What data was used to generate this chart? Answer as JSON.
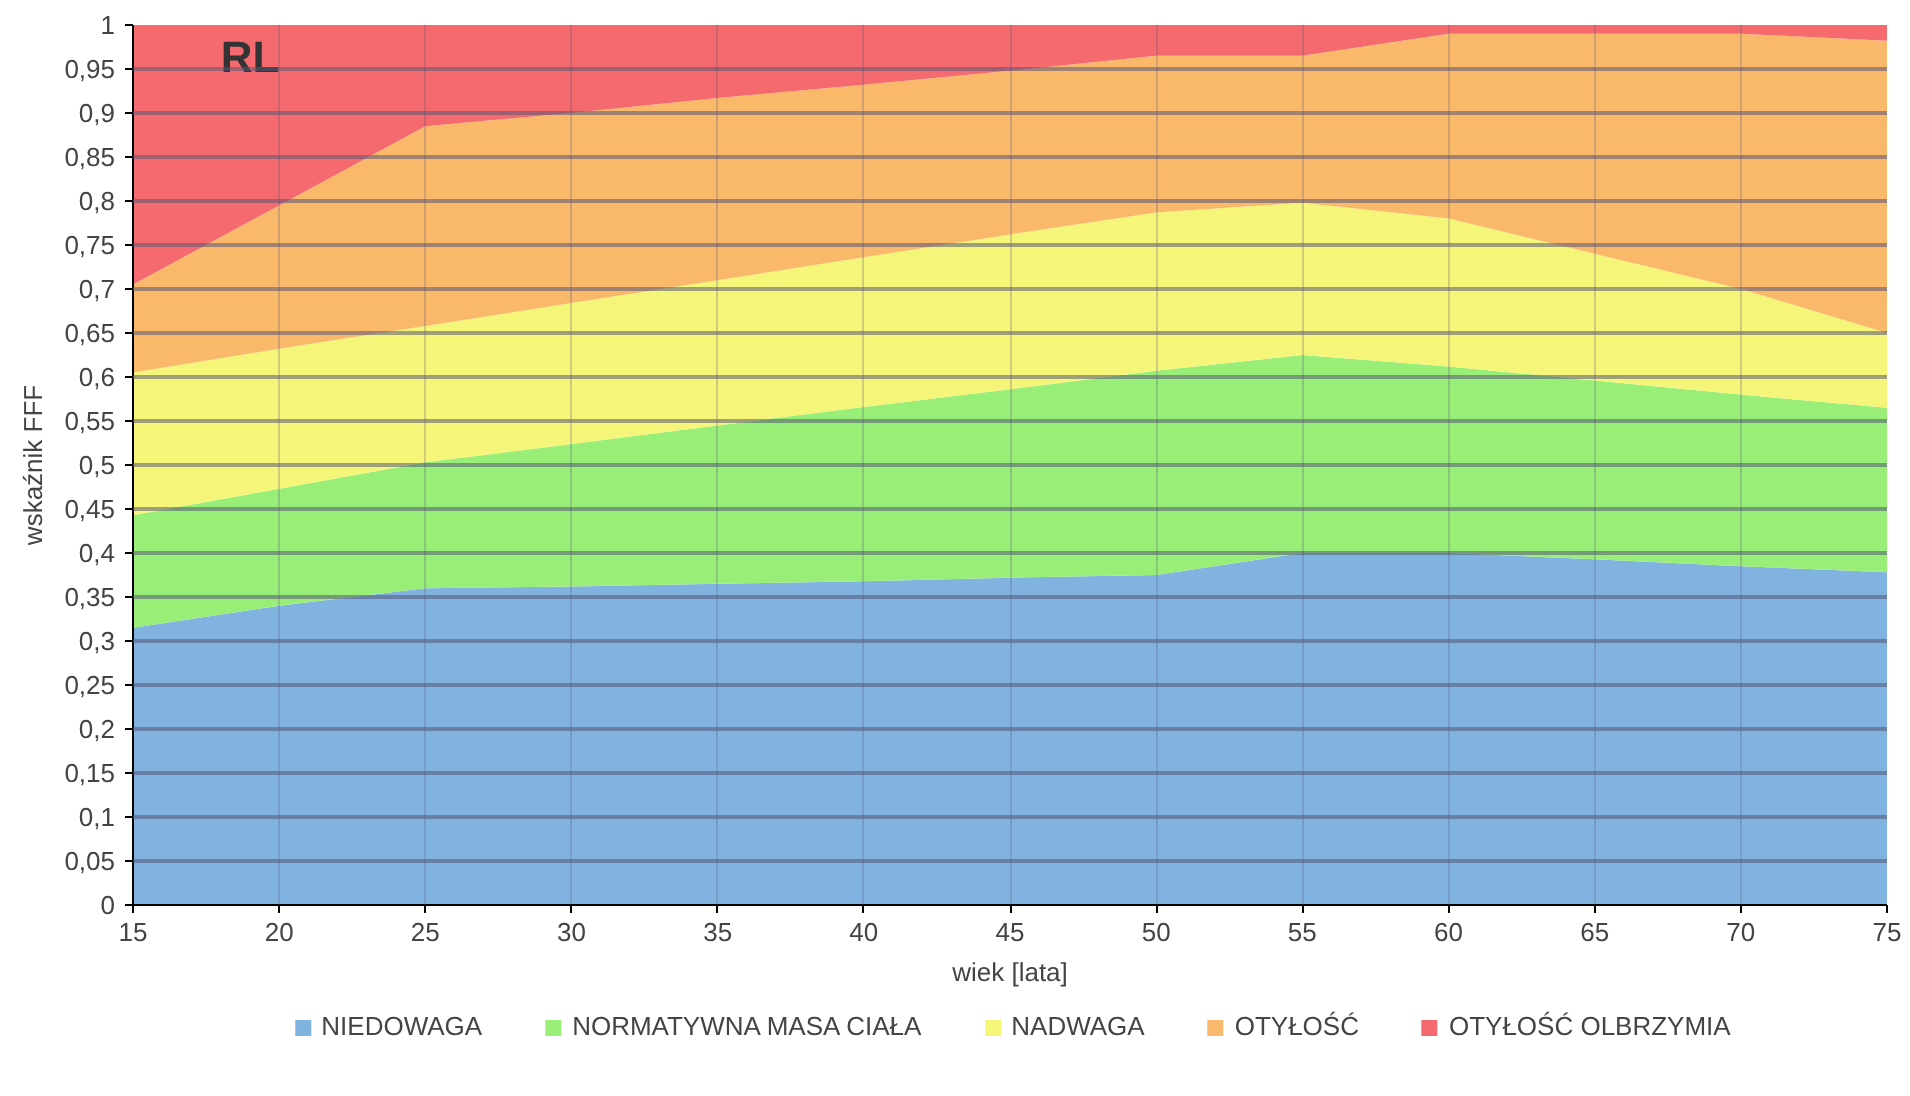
{
  "chart_data": {
    "type": "area",
    "stacked": true,
    "xlabel": "wiek [lata]",
    "ylabel": "wskaźnik FFF",
    "annotations": [
      "RL"
    ],
    "x": [
      15,
      20,
      25,
      30,
      35,
      40,
      45,
      50,
      55,
      60,
      65,
      70,
      75
    ],
    "xlim": [
      15,
      75
    ],
    "xticks": [
      15,
      20,
      25,
      30,
      35,
      40,
      45,
      50,
      55,
      60,
      65,
      70,
      75
    ],
    "ylim": [
      0,
      1
    ],
    "yticks": [
      0,
      {
        "value": 0.05,
        "label": "0,05"
      },
      {
        "value": 0.1,
        "label": "0,1"
      },
      {
        "value": 0.15,
        "label": "0,15"
      },
      {
        "value": 0.2,
        "label": "0,2"
      },
      {
        "value": 0.25,
        "label": "0,25"
      },
      {
        "value": 0.3,
        "label": "0,3"
      },
      {
        "value": 0.35,
        "label": "0,35"
      },
      {
        "value": 0.4,
        "label": "0,4"
      },
      {
        "value": 0.45,
        "label": "0,45"
      },
      {
        "value": 0.5,
        "label": "0,5"
      },
      {
        "value": 0.55,
        "label": "0,55"
      },
      {
        "value": 0.6,
        "label": "0,6"
      },
      {
        "value": 0.65,
        "label": "0,65"
      },
      {
        "value": 0.7,
        "label": "0,7"
      },
      {
        "value": 0.75,
        "label": "0,75"
      },
      {
        "value": 0.8,
        "label": "0,8"
      },
      {
        "value": 0.85,
        "label": "0,85"
      },
      {
        "value": 0.9,
        "label": "0,9"
      },
      {
        "value": 0.95,
        "label": "0,95"
      },
      1
    ],
    "grid": true,
    "legend": "bottom",
    "series": [
      {
        "name": "NIEDOWAGA",
        "color": "#80b3e0",
        "values": [
          0.315,
          0.34,
          0.36,
          0.362,
          0.365,
          0.368,
          0.372,
          0.375,
          0.4,
          0.4,
          0.393,
          0.385,
          0.378
        ]
      },
      {
        "name": "NORMATYWNA MASA CIAŁA",
        "color": "#99ee77",
        "values": [
          0.128,
          0.133,
          0.143,
          0.162,
          0.18,
          0.198,
          0.214,
          0.232,
          0.225,
          0.212,
          0.203,
          0.195,
          0.187
        ]
      },
      {
        "name": "NADWAGA",
        "color": "#f5f57a",
        "values": [
          0.162,
          0.159,
          0.155,
          0.16,
          0.165,
          0.17,
          0.176,
          0.18,
          0.173,
          0.168,
          0.144,
          0.12,
          0.085
        ]
      },
      {
        "name": "OTYŁOŚĆ",
        "color": "#f9b86a",
        "values": [
          0.1,
          0.163,
          0.227,
          0.216,
          0.207,
          0.196,
          0.186,
          0.178,
          0.167,
          0.21,
          0.25,
          0.29,
          0.332
        ]
      },
      {
        "name": "OTYŁOŚĆ OLBRZYMIA",
        "color": "#f56a6e",
        "values": [
          0.295,
          0.205,
          0.115,
          0.1,
          0.083,
          0.068,
          0.052,
          0.035,
          0.035,
          0.01,
          0.01,
          0.01,
          0.018
        ]
      }
    ]
  }
}
